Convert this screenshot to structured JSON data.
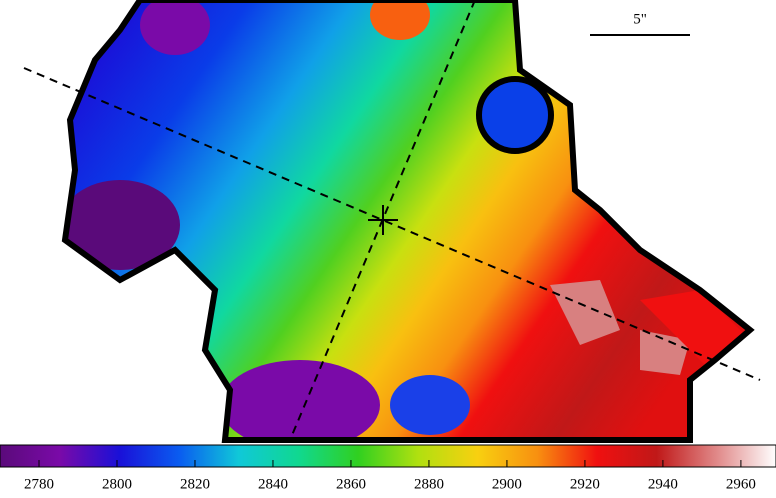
{
  "chart_data": {
    "type": "colorbar",
    "scale_label": "5\"",
    "clim": [
      2770,
      2969
    ],
    "ticks": [
      2780,
      2800,
      2820,
      2840,
      2860,
      2880,
      2900,
      2920,
      2940,
      2960
    ],
    "colormap": [
      "#5a0a7a",
      "#7a0aa8",
      "#1a10d8",
      "#0a5cf0",
      "#10c8d8",
      "#10d890",
      "#30d020",
      "#b0e010",
      "#f8d010",
      "#f89010",
      "#f01010",
      "#c01818",
      "#e08888",
      "#ffffff"
    ]
  }
}
